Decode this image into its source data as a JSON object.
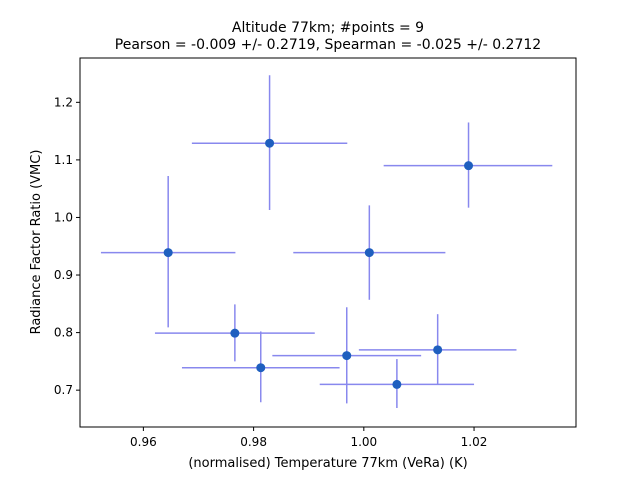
{
  "chart_data": {
    "type": "scatter",
    "title_line1": "Altitude 77km;  #points =  9",
    "title_line2": "Pearson = -0.009 +/-  0.2719, Spearman = -0.025 +/-  0.2712",
    "xlabel": "(normalised) Temperature 77km (VeRa) (K)",
    "ylabel": "Radiance Factor Ratio (VMC)",
    "xlim": [
      0.9485,
      1.0385
    ],
    "ylim": [
      0.636,
      1.277
    ],
    "xticks": [
      0.96,
      0.98,
      1.0,
      1.02
    ],
    "xtick_labels": [
      "0.96",
      "0.98",
      "1.00",
      "1.02"
    ],
    "yticks": [
      0.7,
      0.8,
      0.9,
      1.0,
      1.1,
      1.2
    ],
    "ytick_labels": [
      "0.7",
      "0.8",
      "0.9",
      "1.0",
      "1.1",
      "1.2"
    ],
    "grid": false,
    "marker_color": "#1f5fbf",
    "errorbar_color": "#8888ee",
    "points": [
      {
        "x": 0.9829,
        "y": 1.129,
        "xerr_lo": 0.0141,
        "xerr_hi": 0.0141,
        "yerr_lo": 0.116,
        "yerr_hi": 0.118
      },
      {
        "x": 1.019,
        "y": 1.09,
        "xerr_lo": 0.0154,
        "xerr_hi": 0.0152,
        "yerr_lo": 0.073,
        "yerr_hi": 0.075
      },
      {
        "x": 0.9645,
        "y": 0.939,
        "xerr_lo": 0.0122,
        "xerr_hi": 0.0122,
        "yerr_lo": 0.13,
        "yerr_hi": 0.133
      },
      {
        "x": 1.001,
        "y": 0.939,
        "xerr_lo": 0.0138,
        "xerr_hi": 0.0138,
        "yerr_lo": 0.082,
        "yerr_hi": 0.082
      },
      {
        "x": 0.9766,
        "y": 0.799,
        "xerr_lo": 0.0145,
        "xerr_hi": 0.0145,
        "yerr_lo": 0.049,
        "yerr_hi": 0.05
      },
      {
        "x": 0.9813,
        "y": 0.739,
        "xerr_lo": 0.0143,
        "xerr_hi": 0.0143,
        "yerr_lo": 0.06,
        "yerr_hi": 0.063
      },
      {
        "x": 0.9969,
        "y": 0.76,
        "xerr_lo": 0.0135,
        "xerr_hi": 0.0135,
        "yerr_lo": 0.083,
        "yerr_hi": 0.084
      },
      {
        "x": 1.0134,
        "y": 0.77,
        "xerr_lo": 0.0143,
        "xerr_hi": 0.0143,
        "yerr_lo": 0.06,
        "yerr_hi": 0.062
      },
      {
        "x": 1.006,
        "y": 0.71,
        "xerr_lo": 0.014,
        "xerr_hi": 0.014,
        "yerr_lo": 0.041,
        "yerr_hi": 0.044
      }
    ]
  }
}
